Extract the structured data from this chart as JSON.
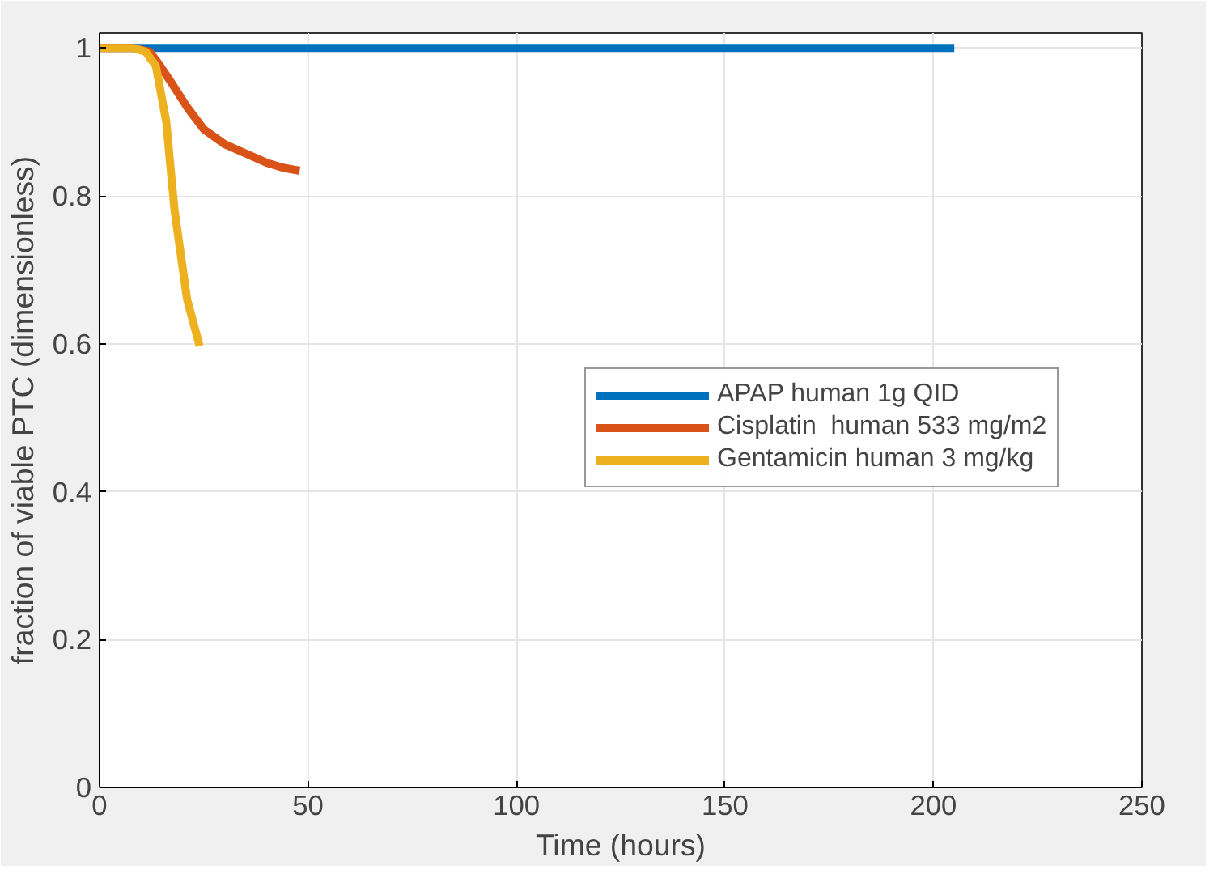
{
  "chart_data": {
    "type": "line",
    "xlabel": "Time (hours)",
    "ylabel": "fraction of viable PTC (dimensionless)",
    "xlim": [
      0,
      250
    ],
    "xticks": [
      0,
      50,
      100,
      150,
      200,
      250
    ],
    "ylim": [
      0,
      1.02
    ],
    "yticks": [
      0,
      0.2,
      0.4,
      0.6,
      0.8,
      1
    ],
    "grid": true,
    "legend": "right",
    "line_style": "solid",
    "series": [
      {
        "name": "APAP human 1g QID",
        "color": "#0072bd",
        "x": [
          0,
          50,
          100,
          150,
          205
        ],
        "values": [
          1,
          1,
          1,
          1,
          1
        ]
      },
      {
        "name": "Cisplatin  human 533 mg/m2",
        "color": "#d95319",
        "x": [
          0,
          8,
          12,
          14,
          17,
          21,
          25,
          30,
          34,
          40,
          44,
          48
        ],
        "values": [
          1,
          1,
          0.995,
          0.98,
          0.955,
          0.92,
          0.89,
          0.87,
          0.86,
          0.845,
          0.838,
          0.834
        ]
      },
      {
        "name": "Gentamicin human 3 mg/kg",
        "color": "#edb120",
        "x": [
          0,
          8,
          11,
          13.5,
          16,
          18,
          21,
          24
        ],
        "values": [
          1,
          1,
          0.995,
          0.976,
          0.9,
          0.78,
          0.66,
          0.597
        ]
      }
    ]
  }
}
